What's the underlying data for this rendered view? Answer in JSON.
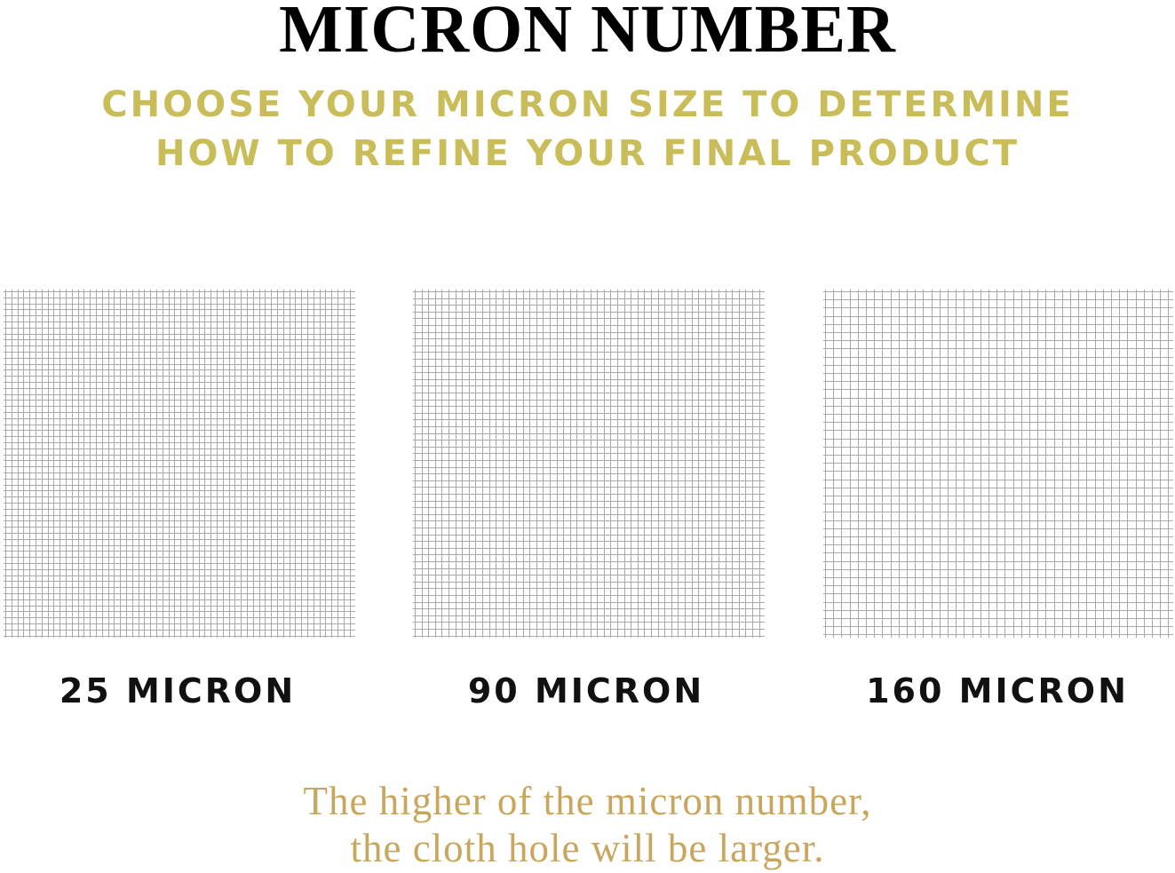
{
  "title": "MICRON NUMBER",
  "subtitle": {
    "line1": "CHOOSE YOUR MICRON SIZE TO DETERMINE",
    "line2": "HOW TO REFINE YOUR FINAL PRODUCT"
  },
  "meshes": [
    {
      "label": "25 MICRON"
    },
    {
      "label": "90 MICRON"
    },
    {
      "label": "160 MICRON"
    }
  ],
  "footer": {
    "line1": "The higher of the micron number,",
    "line2": "the cloth hole will be larger."
  },
  "colors": {
    "title": "#000000",
    "subtitle": "#c9bd5a",
    "label": "#111111",
    "footer": "#c8a65e",
    "mesh_line": "#a8a8a8"
  }
}
